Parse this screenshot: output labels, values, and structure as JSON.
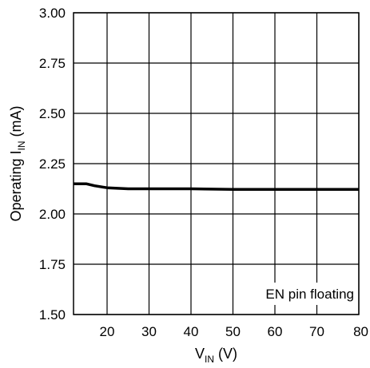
{
  "chart_data": {
    "type": "line",
    "xlabel": {
      "main": "V",
      "sub": "IN",
      "unit": " (V)"
    },
    "ylabel": {
      "main": "Operating I",
      "sub": "IN",
      "unit": " (mA)"
    },
    "xlim": [
      12,
      80
    ],
    "ylim": [
      1.5,
      3.0
    ],
    "x_ticks": [
      20,
      30,
      40,
      50,
      60,
      70,
      80
    ],
    "x_tick_labels": [
      "20",
      "30",
      "40",
      "50",
      "60",
      "70",
      "80"
    ],
    "y_ticks": [
      1.5,
      1.75,
      2.0,
      2.25,
      2.5,
      2.75,
      3.0
    ],
    "y_tick_labels": [
      "1.50",
      "1.75",
      "2.00",
      "2.25",
      "2.50",
      "2.75",
      "3.00"
    ],
    "grid": true,
    "annotation": "EN pin floating",
    "series": [
      {
        "x": [
          12,
          15,
          17,
          20,
          25,
          30,
          40,
          50,
          60,
          70,
          80
        ],
        "y": [
          2.15,
          2.15,
          2.14,
          2.13,
          2.125,
          2.125,
          2.125,
          2.122,
          2.122,
          2.122,
          2.122
        ],
        "color": "#000000"
      }
    ]
  }
}
